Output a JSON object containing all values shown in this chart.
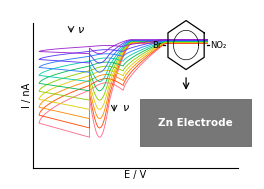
{
  "xlabel": "E / V",
  "ylabel": "I / nA",
  "background_color": "#ffffff",
  "num_curves": 10,
  "colors": [
    "#ff5555",
    "#ff9900",
    "#dddd00",
    "#aadd00",
    "#00bb55",
    "#00ccbb",
    "#2299ff",
    "#3355ff",
    "#8833cc",
    "#cc44aa"
  ],
  "arrow1_text": "ν",
  "arrow2_text": "ν",
  "zn_box_text": "Zn Electrode",
  "zn_box_color": "#777777",
  "zn_box_text_color": "#ffffff"
}
